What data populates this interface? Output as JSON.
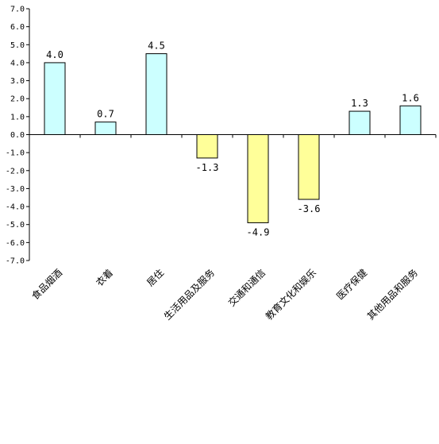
{
  "chart_data": {
    "type": "bar",
    "categories": [
      "食品烟酒",
      "衣着",
      "居住",
      "生活用品及服务",
      "交通和通信",
      "教育文化和娱乐",
      "医疗保健",
      "其他用品和服务"
    ],
    "values": [
      4.0,
      0.7,
      4.5,
      -1.3,
      -4.9,
      -3.6,
      1.3,
      1.6
    ],
    "value_labels": [
      "4.0",
      "0.7",
      "4.5",
      "-1.3",
      "-4.9",
      "-3.6",
      "1.3",
      "1.6"
    ],
    "ylim": [
      -7.0,
      7.0
    ],
    "y_ticks": [
      "7.0",
      "6.0",
      "5.0",
      "4.0",
      "3.0",
      "2.0",
      "1.0",
      "0.0",
      "-1.0",
      "-2.0",
      "-3.0",
      "-4.0",
      "-5.0",
      "-6.0",
      "-7.0"
    ],
    "title": "",
    "xlabel": "",
    "ylabel": "",
    "grid": false,
    "colors": {
      "positive": "#CCFFFF",
      "negative": "#FFFF99",
      "outline": "#000000"
    }
  }
}
